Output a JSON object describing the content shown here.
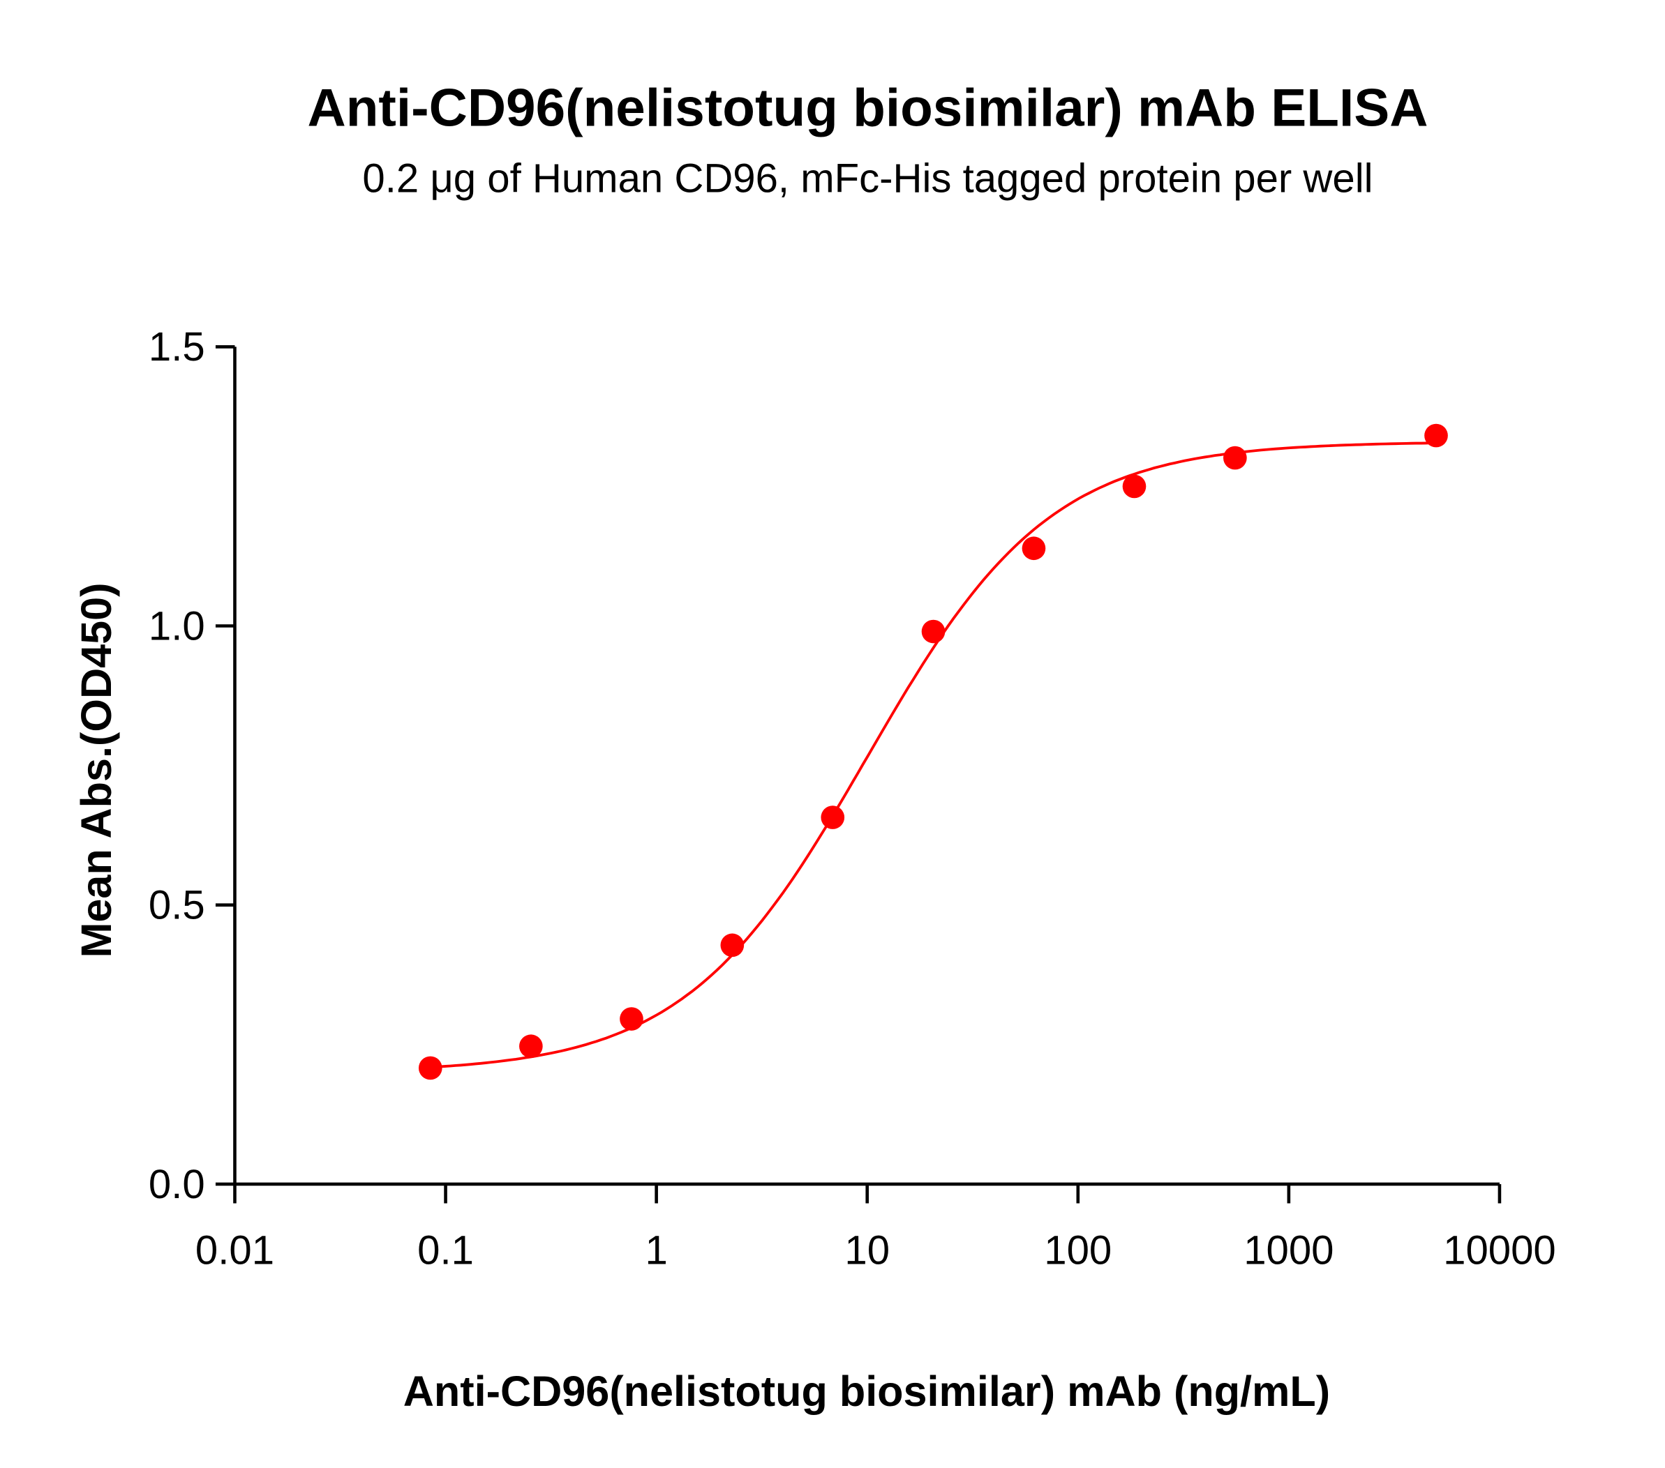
{
  "chart_data": {
    "type": "scatter",
    "title": "Anti-CD96(nelistotug biosimilar) mAb ELISA",
    "subtitle": "0.2 μg of Human CD96, mFc-His tagged protein per well",
    "xlabel": "Anti-CD96(nelistotug biosimilar) mAb (ng/mL)",
    "ylabel": "Mean Abs.(OD450)",
    "x_scale": "log",
    "xlim": [
      0.01,
      10000
    ],
    "ylim": [
      0,
      1.5
    ],
    "x_ticks": [
      "0.01",
      "0.1",
      "1",
      "10",
      "100",
      "1000",
      "10000"
    ],
    "y_ticks": [
      "0.0",
      "0.5",
      "1.0",
      "1.5"
    ],
    "grid": false,
    "color": "#ff0000",
    "fit_curve": "sigmoidal",
    "x": [
      0.0847,
      0.254,
      0.762,
      2.29,
      6.86,
      20.6,
      61.7,
      185,
      556,
      5000
    ],
    "y": [
      0.208,
      0.247,
      0.296,
      0.428,
      0.657,
      0.99,
      1.139,
      1.25,
      1.301,
      1.341
    ]
  }
}
